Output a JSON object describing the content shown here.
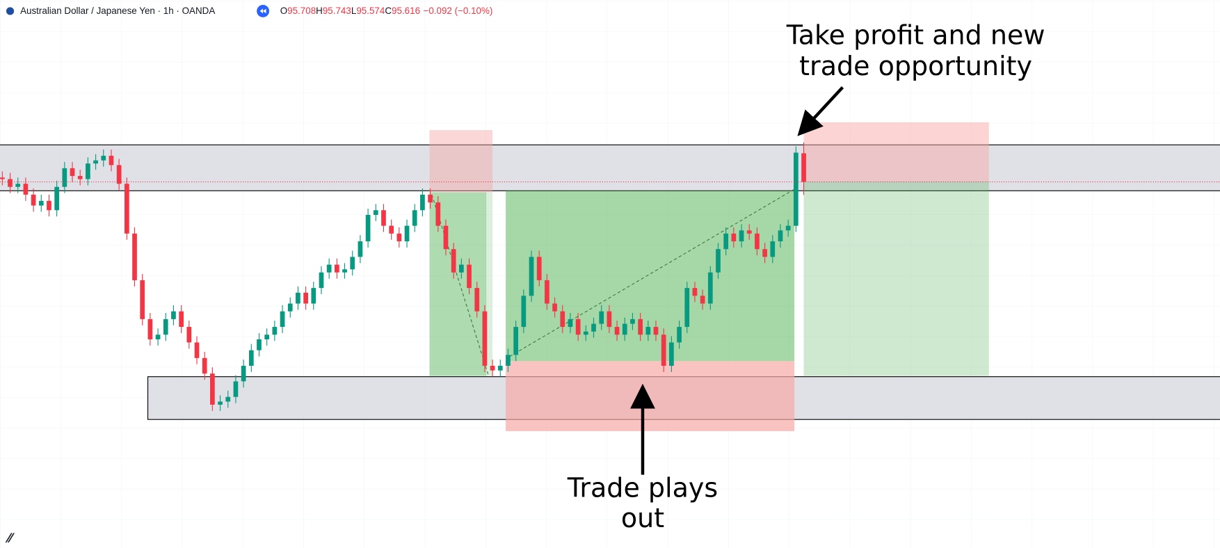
{
  "chart_data": {
    "type": "candlestick",
    "title": "Australian Dollar / Japanese Yen · 1h · OANDA",
    "ohlc": [
      {
        "label": "O",
        "value": 95.708
      },
      {
        "label": "H",
        "value": 95.743
      },
      {
        "label": "L",
        "value": 95.574
      },
      {
        "label": "C",
        "value": 95.616
      }
    ],
    "change": "−0.092 (−0.10%)",
    "annotations": [
      {
        "lines": [
          "Take profit and new",
          "trade opportunity"
        ]
      },
      {
        "lines": [
          "Trade plays",
          "out"
        ]
      }
    ],
    "up_color": "#089981",
    "down_color": "#f23645",
    "ylim": [
      94.44,
      96.2
    ],
    "open": [
      95.63,
      95.625,
      95.6,
      95.61,
      95.575,
      95.54,
      95.555,
      95.525,
      95.6,
      95.66,
      95.635,
      95.625,
      95.675,
      95.685,
      95.7,
      95.67,
      95.61,
      95.45,
      95.3,
      95.175,
      95.11,
      95.125,
      95.175,
      95.2,
      95.15,
      95.1,
      95.05,
      95.0,
      94.9,
      94.91,
      94.925,
      94.975,
      95.025,
      95.075,
      95.11,
      95.125,
      95.15,
      95.2,
      95.225,
      95.26,
      95.225,
      95.275,
      95.325,
      95.35,
      95.325,
      95.335,
      95.375,
      95.425,
      95.51,
      95.525,
      95.475,
      95.45,
      95.425,
      95.475,
      95.525,
      95.575,
      95.55,
      95.475,
      95.4,
      95.325,
      95.35,
      95.275,
      95.2,
      95.025,
      95.01,
      95.025,
      95.06,
      95.15,
      95.25,
      95.375,
      95.3,
      95.225,
      95.2,
      95.15,
      95.175,
      95.125,
      95.135,
      95.16,
      95.2,
      95.15,
      95.125,
      95.16,
      95.175,
      95.125,
      95.15,
      95.125,
      95.025,
      95.1,
      95.15,
      95.275,
      95.25,
      95.225,
      95.325,
      95.4,
      95.45,
      95.425,
      95.46,
      95.45,
      95.4,
      95.375,
      95.425,
      95.46,
      95.475,
      95.708
    ],
    "high": [
      95.65,
      95.645,
      95.63,
      95.63,
      95.595,
      95.575,
      95.575,
      95.62,
      95.68,
      95.68,
      95.655,
      95.695,
      95.705,
      95.72,
      95.72,
      95.69,
      95.63,
      95.47,
      95.32,
      95.195,
      95.145,
      95.195,
      95.22,
      95.22,
      95.17,
      95.12,
      95.07,
      95.02,
      94.93,
      94.945,
      94.995,
      95.045,
      95.095,
      95.13,
      95.145,
      95.17,
      95.22,
      95.245,
      95.28,
      95.28,
      95.295,
      95.345,
      95.37,
      95.37,
      95.355,
      95.395,
      95.445,
      95.53,
      95.545,
      95.545,
      95.495,
      95.47,
      95.495,
      95.545,
      95.595,
      95.595,
      95.57,
      95.495,
      95.42,
      95.37,
      95.37,
      95.295,
      95.22,
      95.045,
      95.045,
      95.08,
      95.17,
      95.27,
      95.395,
      95.395,
      95.32,
      95.245,
      95.22,
      95.195,
      95.195,
      95.155,
      95.18,
      95.22,
      95.22,
      95.17,
      95.18,
      95.195,
      95.195,
      95.17,
      95.17,
      95.145,
      95.12,
      95.17,
      95.295,
      95.295,
      95.27,
      95.345,
      95.42,
      95.47,
      95.47,
      95.48,
      95.48,
      95.47,
      95.42,
      95.445,
      95.48,
      95.495,
      95.73,
      95.743
    ],
    "low": [
      95.605,
      95.58,
      95.58,
      95.555,
      95.52,
      95.52,
      95.505,
      95.505,
      95.58,
      95.615,
      95.605,
      95.605,
      95.655,
      95.665,
      95.65,
      95.59,
      95.43,
      95.28,
      95.155,
      95.09,
      95.09,
      95.105,
      95.155,
      95.13,
      95.08,
      95.03,
      94.98,
      94.88,
      94.88,
      94.89,
      94.905,
      94.955,
      95.005,
      95.055,
      95.09,
      95.105,
      95.13,
      95.18,
      95.205,
      95.205,
      95.205,
      95.255,
      95.305,
      95.305,
      95.305,
      95.315,
      95.355,
      95.405,
      95.49,
      95.455,
      95.43,
      95.405,
      95.405,
      95.455,
      95.505,
      95.53,
      95.455,
      95.38,
      95.305,
      95.305,
      95.255,
      95.18,
      95.005,
      94.99,
      94.99,
      95.005,
      95.04,
      95.13,
      95.23,
      95.28,
      95.205,
      95.18,
      95.13,
      95.13,
      95.105,
      95.105,
      95.115,
      95.14,
      95.13,
      95.105,
      95.105,
      95.14,
      95.105,
      95.105,
      95.105,
      95.005,
      95.005,
      95.08,
      95.13,
      95.23,
      95.205,
      95.205,
      95.305,
      95.38,
      95.405,
      95.405,
      95.43,
      95.38,
      95.355,
      95.355,
      95.405,
      95.44,
      95.455,
      95.574
    ],
    "close": [
      95.625,
      95.6,
      95.61,
      95.575,
      95.54,
      95.555,
      95.525,
      95.6,
      95.66,
      95.635,
      95.625,
      95.675,
      95.685,
      95.7,
      95.67,
      95.61,
      95.45,
      95.3,
      95.175,
      95.11,
      95.125,
      95.175,
      95.2,
      95.15,
      95.1,
      95.05,
      95.0,
      94.9,
      94.91,
      94.925,
      94.975,
      95.025,
      95.075,
      95.11,
      95.125,
      95.15,
      95.2,
      95.225,
      95.26,
      95.225,
      95.275,
      95.325,
      95.35,
      95.325,
      95.335,
      95.375,
      95.425,
      95.51,
      95.525,
      95.475,
      95.45,
      95.425,
      95.475,
      95.525,
      95.575,
      95.55,
      95.475,
      95.4,
      95.325,
      95.35,
      95.275,
      95.2,
      95.025,
      95.01,
      95.025,
      95.06,
      95.15,
      95.25,
      95.375,
      95.3,
      95.225,
      95.2,
      95.15,
      95.175,
      95.125,
      95.135,
      95.16,
      95.2,
      95.15,
      95.125,
      95.16,
      95.175,
      95.125,
      95.15,
      95.125,
      95.025,
      95.1,
      95.15,
      95.275,
      95.25,
      95.225,
      95.325,
      95.4,
      95.45,
      95.425,
      95.46,
      95.45,
      95.4,
      95.375,
      95.425,
      95.46,
      95.475,
      95.71,
      95.616
    ]
  }
}
